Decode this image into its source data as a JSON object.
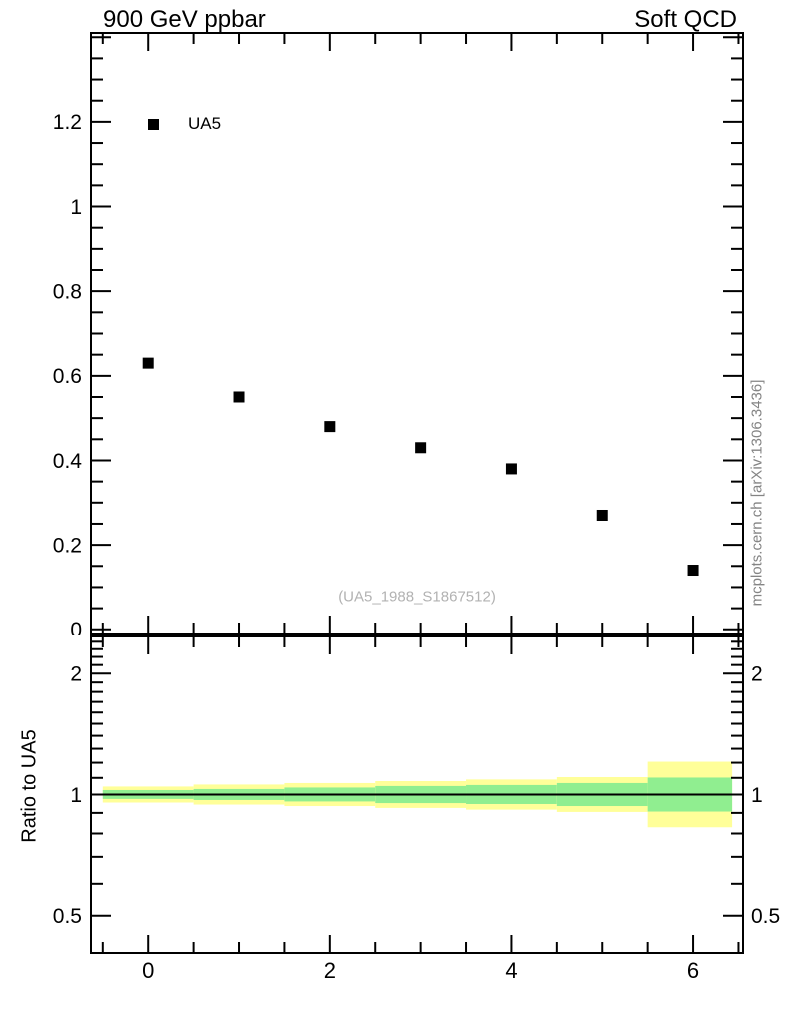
{
  "chart_data": {
    "type": "scatter",
    "title_left": "900 GeV ppbar",
    "title_right": "Soft QCD",
    "watermark": "(UA5_1988_S1867512)",
    "side_note": "mcplots.cern.ch [arXiv:1306.3436]",
    "legend": {
      "label": "UA5",
      "marker": "black-filled-square"
    },
    "colors": {
      "marker": "#000000",
      "band_inner_green": "#90ee90",
      "band_outer_yellow": "#ffff99",
      "watermark_gray": "#b2b2b2",
      "side_note_gray": "#848484"
    },
    "main_panel": {
      "xlim": [
        -0.63,
        6.55
      ],
      "ylim": [
        -0.01,
        1.41
      ],
      "x": [
        0,
        1,
        2,
        3,
        4,
        5,
        6
      ],
      "y": [
        0.63,
        0.55,
        0.48,
        0.43,
        0.38,
        0.27,
        0.14
      ],
      "y_ticks": [
        {
          "label": "1.2",
          "value": 1.2
        },
        {
          "label": "1",
          "value": 1.0
        },
        {
          "label": "0.8",
          "value": 0.8
        },
        {
          "label": "0.6",
          "value": 0.6
        },
        {
          "label": "0.4",
          "value": 0.4
        },
        {
          "label": "0.2",
          "value": 0.2
        },
        {
          "label": "0",
          "value": 0.0
        }
      ],
      "y_major_step": 0.2,
      "y_minor_step": 0.05,
      "x_ticks": [
        {
          "label": "0",
          "value": 0
        },
        {
          "label": "2",
          "value": 2
        },
        {
          "label": "4",
          "value": 4
        },
        {
          "label": "6",
          "value": 6
        }
      ],
      "x_minor_step": 0.5
    },
    "ratio_panel": {
      "ylabel": "Ratio to UA5",
      "yscale": "log",
      "ylim": [
        0.404,
        2.474
      ],
      "y_ticks": [
        {
          "label": "2",
          "value": 2.0
        },
        {
          "label": "1",
          "value": 1.0
        },
        {
          "label": "0.5",
          "value": 0.5
        }
      ],
      "reference_line": 1.0,
      "bands": [
        {
          "xlo": -0.5,
          "xhi": 0.5,
          "green": [
            0.975,
            1.026
          ],
          "yellow": [
            0.955,
            1.047
          ]
        },
        {
          "xlo": 0.5,
          "xhi": 1.5,
          "green": [
            0.969,
            1.032
          ],
          "yellow": [
            0.944,
            1.059
          ]
        },
        {
          "xlo": 1.5,
          "xhi": 2.5,
          "green": [
            0.961,
            1.041
          ],
          "yellow": [
            0.936,
            1.068
          ]
        },
        {
          "xlo": 2.5,
          "xhi": 3.5,
          "green": [
            0.952,
            1.05
          ],
          "yellow": [
            0.926,
            1.08
          ]
        },
        {
          "xlo": 3.5,
          "xhi": 4.5,
          "green": [
            0.947,
            1.056
          ],
          "yellow": [
            0.917,
            1.09
          ]
        },
        {
          "xlo": 4.5,
          "xhi": 5.5,
          "green": [
            0.936,
            1.068
          ],
          "yellow": [
            0.905,
            1.105
          ]
        },
        {
          "xlo": 5.5,
          "xhi": 6.43,
          "green": [
            0.907,
            1.102
          ],
          "yellow": [
            0.829,
            1.207
          ]
        }
      ]
    }
  }
}
